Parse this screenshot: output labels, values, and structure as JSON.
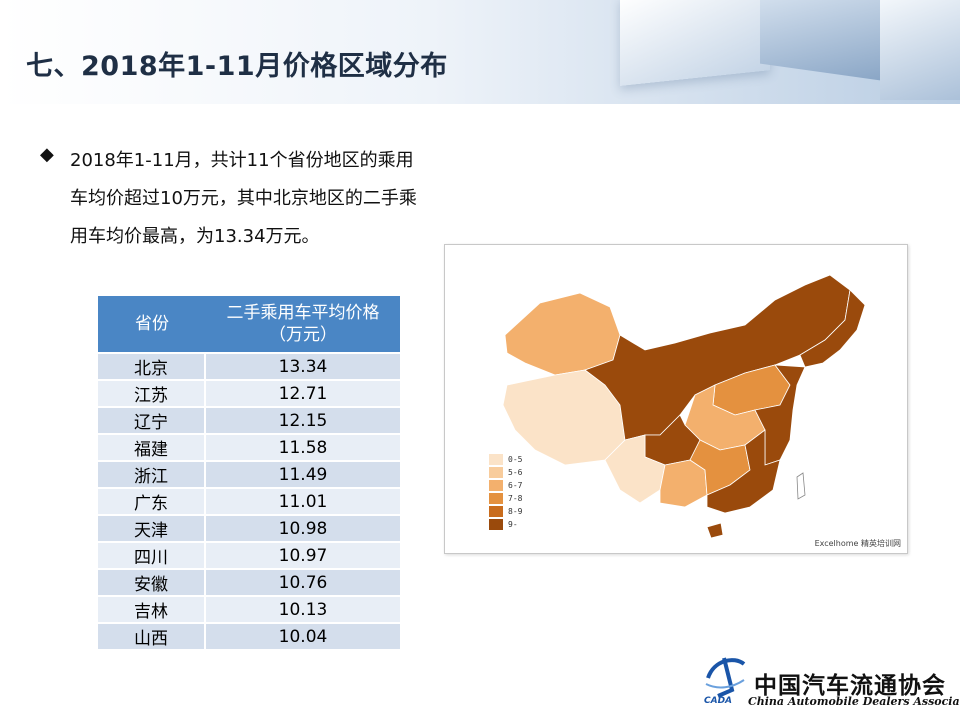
{
  "header": {
    "title": "七、2018年1-11月价格区域分布"
  },
  "bullet": {
    "text": "2018年1-11月，共计11个省份地区的乘用车均价超过10万元，其中北京地区的二手乘用车均价最高，为13.34万元。"
  },
  "table": {
    "headers": [
      "省份",
      "二手乘用车平均价格",
      "（万元）"
    ],
    "rows": [
      {
        "province": "北京",
        "price": "13.34"
      },
      {
        "province": "江苏",
        "price": "12.71"
      },
      {
        "province": "辽宁",
        "price": "12.15"
      },
      {
        "province": "福建",
        "price": "11.58"
      },
      {
        "province": "浙江",
        "price": "11.49"
      },
      {
        "province": "广东",
        "price": "11.01"
      },
      {
        "province": "天津",
        "price": "10.98"
      },
      {
        "province": "四川",
        "price": "10.97"
      },
      {
        "province": "安徽",
        "price": "10.76"
      },
      {
        "province": "吉林",
        "price": "10.13"
      },
      {
        "province": "山西",
        "price": "10.04"
      }
    ]
  },
  "map": {
    "legend": [
      {
        "label": "0-5",
        "color": "#fbe3c8"
      },
      {
        "label": "5-6",
        "color": "#f8cc9c"
      },
      {
        "label": "6-7",
        "color": "#f3b06d"
      },
      {
        "label": "7-8",
        "color": "#e4913f"
      },
      {
        "label": "8-9",
        "color": "#c96c1d"
      },
      {
        "label": "9-",
        "color": "#9a4a0c"
      }
    ],
    "credit": "Excelhome 精英培训网"
  },
  "logo": {
    "cn": "中国汽车流通协会",
    "en": "China Automobile Dealers Association",
    "abbr": "CADA"
  }
}
